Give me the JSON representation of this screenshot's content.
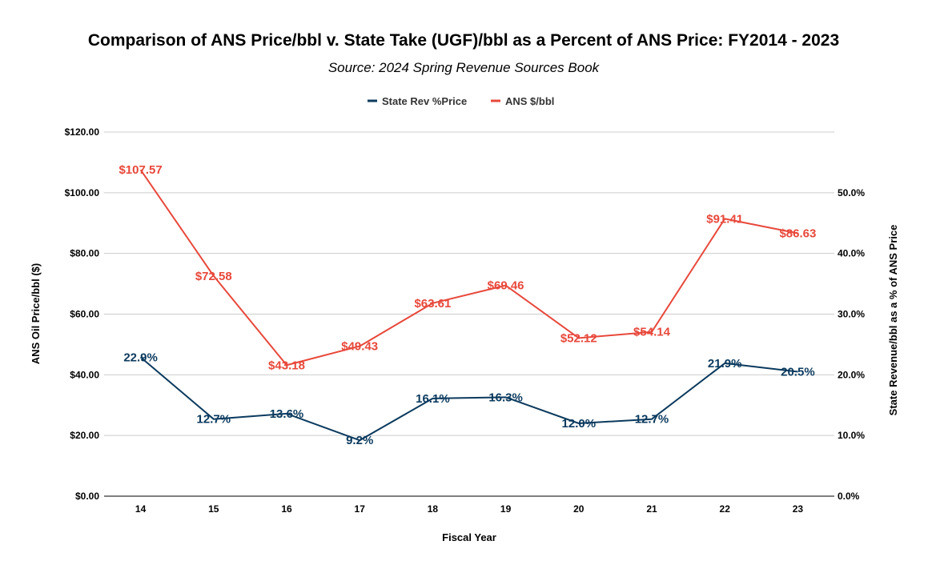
{
  "chart_data": {
    "type": "line",
    "title": "Comparison of ANS Price/bbl v. State Take (UGF)/bbl as a Percent of ANS Price: FY2014 - 2023",
    "subtitle": "Source: 2024 Spring Revenue Sources Book",
    "xlabel": "Fiscal Year",
    "ylabel_left": "ANS Oil Price/bbl ($)",
    "ylabel_right": "State Revenue/bbl as a % of ANS Price",
    "categories": [
      "14",
      "15",
      "16",
      "17",
      "18",
      "19",
      "20",
      "21",
      "22",
      "23"
    ],
    "ylim_left": [
      0,
      120
    ],
    "ylim_right": [
      0,
      60
    ],
    "yticks_left": [
      "$0.00",
      "$20.00",
      "$40.00",
      "$60.00",
      "$80.00",
      "$100.00",
      "$120.00"
    ],
    "yticks_right": [
      "0.0%",
      "10.0%",
      "20.0%",
      "30.0%",
      "40.0%",
      "50.0%"
    ],
    "grid": true,
    "legend_position": "top",
    "series": [
      {
        "name": "State Rev %Price",
        "axis": "right",
        "color": "#0b3a5e",
        "values": [
          22.9,
          12.7,
          13.6,
          9.2,
          16.1,
          16.3,
          12.0,
          12.7,
          21.9,
          20.5
        ],
        "labels": [
          "22.9%",
          "12.7%",
          "13.6%",
          "9.2%",
          "16.1%",
          "16.3%",
          "12.0%",
          "12.7%",
          "21.9%",
          "20.5%"
        ]
      },
      {
        "name": "ANS $/bbl",
        "axis": "left",
        "color": "#e8483b",
        "values": [
          107.57,
          72.58,
          43.18,
          49.43,
          63.61,
          69.46,
          52.12,
          54.14,
          91.41,
          86.63
        ],
        "labels": [
          "$107.57",
          "$72.58",
          "$43.18",
          "$49.43",
          "$63.61",
          "$69.46",
          "$52.12",
          "$54.14",
          "$91.41",
          "$86.63"
        ]
      }
    ]
  }
}
